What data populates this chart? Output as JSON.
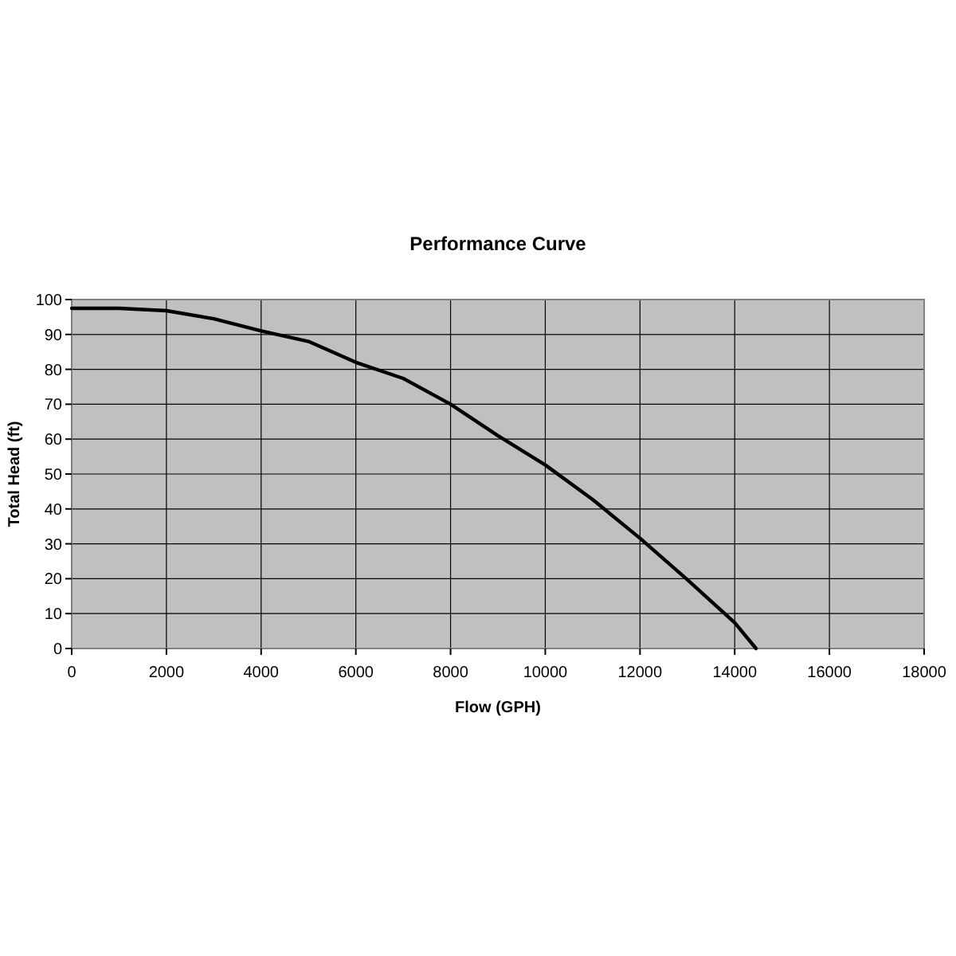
{
  "chart_data": {
    "type": "line",
    "title": "Performance Curve",
    "xlabel": "Flow (GPH)",
    "ylabel": "Total Head (ft)",
    "series": [
      {
        "color": "#000000",
        "x": [
          0,
          1000,
          2000,
          3000,
          4000,
          5000,
          6000,
          7000,
          8000,
          9000,
          10000,
          11000,
          12000,
          13000,
          14000,
          14450
        ],
        "values": [
          97.5,
          97.5,
          96.8,
          94.5,
          91,
          88,
          82,
          77.4,
          70,
          61,
          52.6,
          42.7,
          31.6,
          19.7,
          7.4,
          0
        ]
      }
    ],
    "xlim": [
      0,
      18000
    ],
    "xticks": [
      0,
      2000,
      4000,
      6000,
      8000,
      10000,
      12000,
      14000,
      16000,
      18000
    ],
    "ylim": [
      0,
      100
    ],
    "yticks": [
      0,
      10,
      20,
      30,
      40,
      50,
      60,
      70,
      80,
      90,
      100
    ],
    "grid": true,
    "marker": "none",
    "line_style": "solid"
  }
}
